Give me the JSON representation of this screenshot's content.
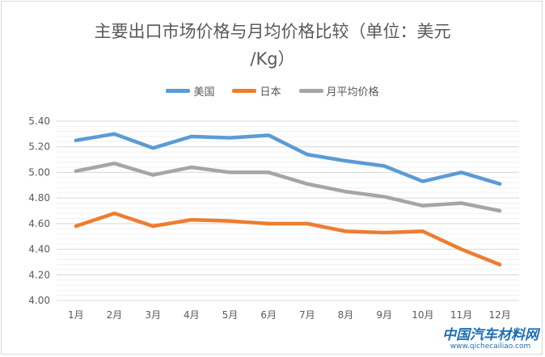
{
  "chart_data": {
    "type": "line",
    "title": "主要出口市场价格与月均价格比较（单位：美元/Kg）",
    "title_lines": [
      "主要出口市场价格与月均价格比较（单位：美元",
      "/Kg）"
    ],
    "categories": [
      "1月",
      "2月",
      "3月",
      "4月",
      "5月",
      "6月",
      "7月",
      "8月",
      "9月",
      "10月",
      "11月",
      "12月"
    ],
    "series": [
      {
        "name": "美国",
        "color": "#5b9bd5",
        "values": [
          5.25,
          5.3,
          5.19,
          5.28,
          5.27,
          5.29,
          5.14,
          5.09,
          5.05,
          4.93,
          5.0,
          4.91
        ]
      },
      {
        "name": "日本",
        "color": "#ed7d31",
        "values": [
          4.58,
          4.68,
          4.58,
          4.63,
          4.62,
          4.6,
          4.6,
          4.54,
          4.53,
          4.54,
          4.4,
          4.28
        ]
      },
      {
        "name": "月平均价格",
        "color": "#a5a5a5",
        "values": [
          5.01,
          5.07,
          4.98,
          5.04,
          5.0,
          5.0,
          4.91,
          4.85,
          4.81,
          4.74,
          4.76,
          4.7
        ]
      }
    ],
    "ylim": [
      4.0,
      5.4
    ],
    "yticks": [
      "4.00",
      "4.20",
      "4.40",
      "4.60",
      "4.80",
      "5.00",
      "5.20",
      "5.40"
    ],
    "grid": true,
    "legend": "top"
  },
  "watermark": {
    "name": "中国汽车材料网",
    "url": "www.qichecailiao.com"
  }
}
